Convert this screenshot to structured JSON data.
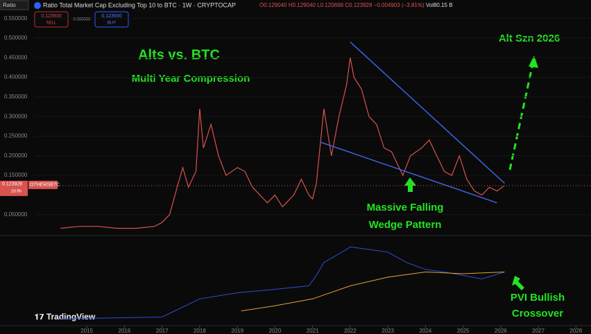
{
  "header": {
    "symbol_box": "Ratio",
    "title": "Ratio Total Market Cap Excluding Top 10 to BTC · 1W · CRYPTOCAP",
    "open": "O0.129040",
    "high": "H0.129040",
    "low": "L0.120698",
    "close": "C0.123928",
    "change": "−0.004903 (−3.81%)",
    "volume": "Vol80.15 B",
    "sell_price": "0.123930",
    "sell": "SELL",
    "spread": "0.000000",
    "buy_price": "0.123930",
    "buy": "BUY"
  },
  "chart_data": [
    {
      "type": "line",
      "color": "#d9534f",
      "x": [
        2014.3,
        2014.8,
        2015.3,
        2015.8,
        2016.3,
        2016.8,
        2017.0,
        2017.2,
        2017.4,
        2017.55,
        2017.7,
        2017.9,
        2018.0,
        2018.1,
        2018.3,
        2018.5,
        2018.7,
        2019.0,
        2019.2,
        2019.4,
        2019.6,
        2019.8,
        2020.0,
        2020.2,
        2020.5,
        2020.7,
        2020.9,
        2021.0,
        2021.1,
        2021.3,
        2021.5,
        2021.7,
        2021.9,
        2022.0,
        2022.1,
        2022.3,
        2022.5,
        2022.7,
        2022.9,
        2023.1,
        2023.4,
        2023.6,
        2023.9,
        2024.1,
        2024.3,
        2024.5,
        2024.7,
        2024.9,
        2025.1,
        2025.3,
        2025.5,
        2025.7,
        2025.9,
        2026.1
      ],
      "values": [
        0.015,
        0.02,
        0.02,
        0.015,
        0.015,
        0.02,
        0.03,
        0.05,
        0.12,
        0.17,
        0.12,
        0.16,
        0.32,
        0.22,
        0.28,
        0.2,
        0.15,
        0.17,
        0.16,
        0.12,
        0.1,
        0.08,
        0.1,
        0.07,
        0.1,
        0.14,
        0.1,
        0.09,
        0.13,
        0.32,
        0.2,
        0.3,
        0.38,
        0.45,
        0.4,
        0.37,
        0.3,
        0.28,
        0.22,
        0.21,
        0.15,
        0.2,
        0.22,
        0.24,
        0.2,
        0.16,
        0.15,
        0.2,
        0.14,
        0.11,
        0.1,
        0.12,
        0.11,
        0.123928
      ],
      "last_label": "0.123928",
      "symbol_label": "OTHERSBTC",
      "countdown": "2d 8h",
      "xlim": [
        2013.3,
        2028.4
      ],
      "xticks": [
        2015,
        2016,
        2017,
        2018,
        2019,
        2020,
        2021,
        2022,
        2023,
        2024,
        2025,
        2026,
        2027,
        2028
      ],
      "ylim": [
        0,
        0.575
      ],
      "yticks": [
        {
          "value": 0.05,
          "label": "0.050000"
        },
        {
          "value": 0.15,
          "label": "0.150000"
        },
        {
          "value": 0.2,
          "label": "0.200000"
        },
        {
          "value": 0.25,
          "label": "0.250000"
        },
        {
          "value": 0.3,
          "label": "0.300000"
        },
        {
          "value": 0.35,
          "label": "0.350000"
        },
        {
          "value": 0.4,
          "label": "0.400000"
        },
        {
          "value": 0.45,
          "label": "0.450000"
        },
        {
          "value": 0.5,
          "label": "0.500000"
        },
        {
          "value": 0.55,
          "label": "0.550000"
        }
      ],
      "trendlines": [
        {
          "color": "#3d63e0",
          "x": [
            2022.0,
            2026.1
          ],
          "values": [
            0.49,
            0.13
          ]
        },
        {
          "color": "#3d63e0",
          "x": [
            2021.2,
            2025.9
          ],
          "values": [
            0.235,
            0.08
          ]
        }
      ],
      "annotations": {
        "title": "Alts vs. BTC",
        "subtitle": "Multi Year Compression",
        "target": "Alt Szn 2026",
        "wedge_1": "Massive Falling",
        "wedge_2": "Wedge Pattern"
      }
    },
    {
      "type": "line",
      "ylim": [
        0,
        100
      ],
      "series": [
        {
          "color": "#2f4fd8",
          "x": [
            2014.3,
            2017.0,
            2018.0,
            2019.0,
            2020.0,
            2020.9,
            2021.1,
            2021.3,
            2021.9,
            2022.0,
            2022.5,
            2023.0,
            2023.5,
            2024.0,
            2024.5,
            2025.0,
            2025.5,
            2026.1
          ],
          "values": [
            8,
            10,
            31,
            38,
            42,
            46,
            58,
            73,
            88,
            91,
            88,
            85,
            73,
            65,
            62,
            58,
            54,
            62
          ]
        },
        {
          "color": "#e8a33a",
          "x": [
            2019.1,
            2020.0,
            2021.0,
            2022.0,
            2023.0,
            2024.0,
            2025.0,
            2026.1
          ],
          "values": [
            17,
            23,
            31,
            46,
            56,
            62,
            60,
            62
          ]
        }
      ],
      "annotations": {
        "pvi_1": "PVI Bullish",
        "pvi_2": "Crossover"
      }
    }
  ],
  "brand": "TradingView"
}
